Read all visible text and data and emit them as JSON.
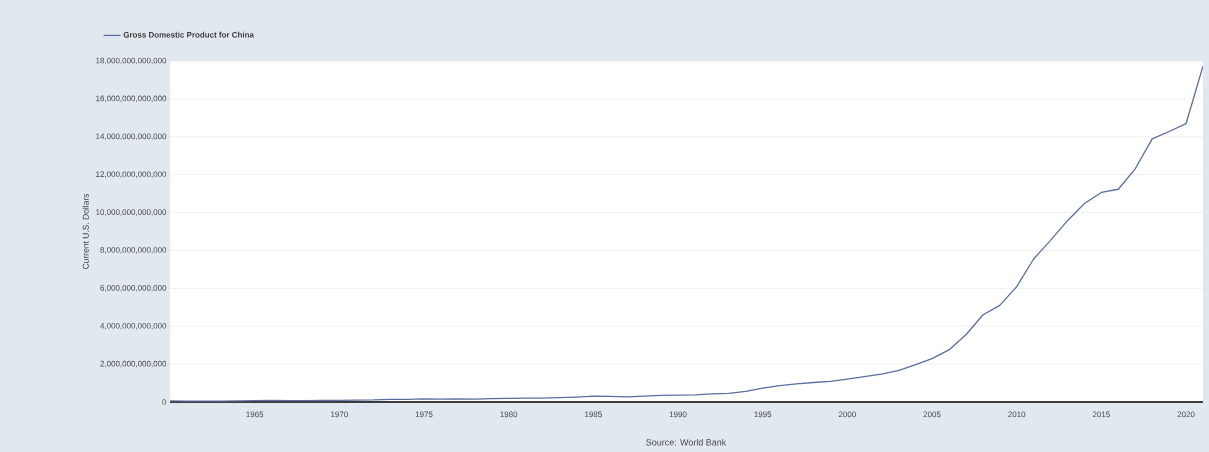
{
  "chart_data": {
    "type": "line",
    "x": [
      1960,
      1961,
      1962,
      1963,
      1964,
      1965,
      1966,
      1967,
      1968,
      1969,
      1970,
      1971,
      1972,
      1973,
      1974,
      1975,
      1976,
      1977,
      1978,
      1979,
      1980,
      1981,
      1982,
      1983,
      1984,
      1985,
      1986,
      1987,
      1988,
      1989,
      1990,
      1991,
      1992,
      1993,
      1994,
      1995,
      1996,
      1997,
      1998,
      1999,
      2000,
      2001,
      2002,
      2003,
      2004,
      2005,
      2006,
      2007,
      2008,
      2009,
      2010,
      2011,
      2012,
      2013,
      2014,
      2015,
      2016,
      2017,
      2018,
      2019,
      2020,
      2021
    ],
    "series": [
      {
        "name": "Gross Domestic Product for China",
        "color": "#5b6e9e",
        "values": [
          60000000000,
          50000000000,
          50000000000,
          50000000000,
          60000000000,
          70000000000,
          80000000000,
          70000000000,
          70000000000,
          80000000000,
          90000000000,
          100000000000,
          110000000000,
          140000000000,
          140000000000,
          160000000000,
          150000000000,
          170000000000,
          150000000000,
          180000000000,
          190000000000,
          200000000000,
          200000000000,
          230000000000,
          260000000000,
          310000000000,
          300000000000,
          270000000000,
          310000000000,
          350000000000,
          360000000000,
          380000000000,
          430000000000,
          450000000000,
          560000000000,
          730000000000,
          860000000000,
          960000000000,
          1030000000000,
          1090000000000,
          1210000000000,
          1340000000000,
          1470000000000,
          1660000000000,
          1960000000000,
          2290000000000,
          2750000000000,
          3550000000000,
          4590000000000,
          5100000000000,
          6090000000000,
          7550000000000,
          8530000000000,
          9570000000000,
          10480000000000,
          11060000000000,
          11230000000000,
          12310000000000,
          13890000000000,
          14280000000000,
          14690000000000,
          17730000000000
        ]
      }
    ],
    "xlim": [
      1960,
      2021
    ],
    "ylim": [
      0,
      18000000000000
    ],
    "xticks": [
      1965,
      1970,
      1975,
      1980,
      1985,
      1990,
      1995,
      2000,
      2005,
      2010,
      2015,
      2020
    ],
    "yticks": [
      {
        "value": 0,
        "label": "0"
      },
      {
        "value": 2000000000000,
        "label": "2,000,000,000,000"
      },
      {
        "value": 4000000000000,
        "label": "4,000,000,000,000"
      },
      {
        "value": 6000000000000,
        "label": "6,000,000,000,000"
      },
      {
        "value": 8000000000000,
        "label": "8,000,000,000,000"
      },
      {
        "value": 10000000000000,
        "label": "10,000,000,000,000"
      },
      {
        "value": 12000000000000,
        "label": "12,000,000,000,000"
      },
      {
        "value": 14000000000000,
        "label": "14,000,000,000,000"
      },
      {
        "value": 16000000000000,
        "label": "16,000,000,000,000"
      },
      {
        "value": 18000000000000,
        "label": "18,000,000,000,000"
      }
    ],
    "ylabel": "Current U.S. Dollars",
    "annotations": [
      "Source: World Bank"
    ],
    "grid": "y",
    "legend": "top left",
    "marker": "none",
    "line_style": "solid"
  }
}
